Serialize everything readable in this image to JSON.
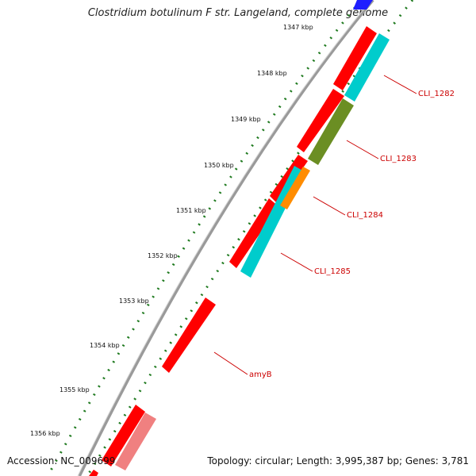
{
  "map": {
    "title": "Clostridium botulinum F str. Langeland, complete genome",
    "accession": "Accession: NC_009699",
    "topology": "Topology: circular; Length: 3,995,387 bp; Genes: 3,781",
    "ticks": [
      {
        "label": "1347 kbp"
      },
      {
        "label": "1348 kbp"
      },
      {
        "label": "1349 kbp"
      },
      {
        "label": "1350 kbp"
      },
      {
        "label": "1351 kbp"
      },
      {
        "label": "1352 kbp"
      },
      {
        "label": "1353 kbp"
      },
      {
        "label": "1354 kbp"
      },
      {
        "label": "1355 kbp"
      },
      {
        "label": "1356 kbp"
      }
    ],
    "gene_labels": [
      "CLI_1282",
      "CLI_1283",
      "CLI_1284",
      "CLI_1285",
      "amyB"
    ],
    "colors": {
      "backbone": "#8c8c8c",
      "cds_forward": "#ff0000",
      "cds_reverse": "#00cccc",
      "cog_green": "#6b8e23",
      "cog_orange": "#ff8c00",
      "cds_pale": "#f08080",
      "ticks": "#1f7a1f",
      "label": "#cc0000"
    }
  }
}
